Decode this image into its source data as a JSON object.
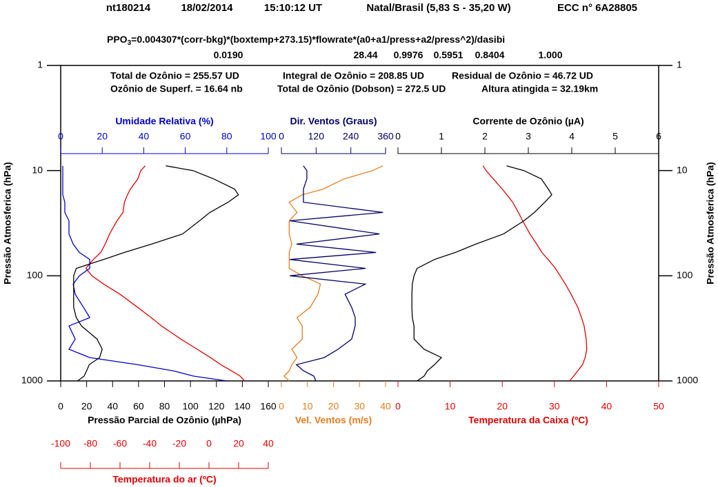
{
  "title_parts": [
    "nt180214",
    "18/02/2014",
    "15:10:12 UT",
    "Natal/Brasil (5,83 S - 35,20 W)",
    "ECC  n° 6A28805"
  ],
  "formula": {
    "lead": "PPO",
    "sub": "3",
    "rest": "=0.004307*(corr-bkg)*(boxtemp+273.15)*flowrate*(a0+a1/press+a2/press^2)/dasibi",
    "coefficients": [
      "0.0190",
      "28.44",
      "0.9976",
      "0.5951",
      "0.8404",
      "1.000"
    ]
  },
  "summary": [
    [
      "Total de Ozônio = 255.57 UD",
      "Integral de Ozônio = 208.85 UD",
      "Residual  de Ozônio = 46.72 UD"
    ],
    [
      "Ozônio de Superf. = 16.64 nb",
      "Total de Ozônio (Dobson) = 272.5 UD",
      "Altura atingida = 32.19km"
    ]
  ],
  "pressure_axis": {
    "label": "Pressão Atmosferica (hPa)",
    "log": true,
    "ylim": [
      1000,
      1
    ],
    "yticks": [
      1,
      10,
      100,
      1000
    ]
  },
  "chart_data": [
    {
      "type": "line",
      "y": [
        1000,
        900,
        800,
        700,
        600,
        500,
        400,
        300,
        250,
        200,
        150,
        120,
        100,
        85,
        70,
        60,
        50,
        40,
        30,
        25,
        20,
        17,
        15,
        12,
        10,
        9
      ],
      "axes": [
        {
          "position": "top",
          "label": "Umidade Relativa (%)",
          "color": "#0000cc",
          "xlim": [
            0,
            100
          ],
          "xticks": [
            0,
            20,
            40,
            60,
            80,
            100
          ]
        },
        {
          "position": "bottom",
          "label": "Pressão Parcial de Ozônio (µhPa)",
          "color": "#000000",
          "xlim": [
            0,
            160
          ],
          "xticks": [
            0,
            20,
            40,
            60,
            80,
            100,
            120,
            140,
            160
          ]
        },
        {
          "position": "bottom2",
          "label": "Temperatura do ar (ºC)",
          "color": "#e00000",
          "xlim": [
            -100,
            40
          ],
          "xticks": [
            -100,
            -80,
            -60,
            -40,
            -20,
            0,
            20,
            40
          ]
        }
      ],
      "series": [
        {
          "axis": 2,
          "color": "#e00000",
          "values": [
            24,
            21,
            15,
            8,
            1,
            -8,
            -19,
            -32,
            -39,
            -48,
            -60,
            -71,
            -79,
            -83,
            -78,
            -73,
            -70,
            -67,
            -62,
            -58,
            -57,
            -55,
            -53,
            -48,
            -46,
            -43
          ]
        },
        {
          "axis": 0,
          "color": "#0000cc",
          "values": [
            80,
            64,
            54,
            37,
            14,
            4,
            7,
            4,
            14,
            11,
            7,
            6,
            9,
            14,
            14,
            9,
            6,
            4,
            4,
            2,
            2,
            1,
            1,
            1,
            1,
            1
          ]
        },
        {
          "axis": 1,
          "color": "#000000",
          "values": [
            13,
            18,
            20,
            22,
            30,
            32,
            28,
            16,
            12,
            10,
            10,
            10,
            10,
            12,
            33,
            49,
            70,
            94,
            107,
            115,
            129,
            137,
            134,
            118,
            102,
            81
          ]
        }
      ]
    },
    {
      "type": "line",
      "y": [
        1000,
        900,
        800,
        700,
        600,
        500,
        400,
        300,
        250,
        200,
        150,
        120,
        100,
        85,
        70,
        60,
        50,
        40,
        30,
        25,
        20,
        17,
        15,
        12,
        10,
        9
      ],
      "axes": [
        {
          "position": "top",
          "label": "Dir. Ventos (Graus)",
          "color": "#000066",
          "xlim": [
            0,
            360
          ],
          "xticks": [
            0,
            120,
            240,
            360
          ]
        },
        {
          "position": "bottom",
          "label": "Vel. Ventos (m/s)",
          "color": "#e87b1e",
          "xlim": [
            0,
            40
          ],
          "xticks": [
            0,
            10,
            20,
            30,
            40
          ]
        }
      ],
      "series": [
        {
          "axis": 1,
          "color": "#e87b1e",
          "values": [
            3,
            1,
            3,
            4,
            6,
            4,
            8,
            8,
            6,
            11,
            14,
            15,
            8,
            3,
            3,
            3,
            4,
            3,
            3,
            6,
            3,
            8,
            16,
            24,
            35,
            39
          ]
        },
        {
          "axis": 0,
          "color": "#000066",
          "values": [
            119,
            112,
            76,
            52,
            148,
            196,
            243,
            255,
            255,
            243,
            220,
            290,
            29,
            291,
            29,
            327,
            52,
            339,
            29,
            351,
            76,
            76,
            76,
            88,
            88,
            76
          ]
        }
      ]
    },
    {
      "type": "line",
      "y": [
        1000,
        900,
        800,
        700,
        600,
        500,
        400,
        300,
        250,
        200,
        150,
        120,
        100,
        85,
        70,
        60,
        50,
        40,
        30,
        25,
        20,
        17,
        15,
        12,
        10,
        9
      ],
      "axes": [
        {
          "position": "top",
          "label": "Corrente de Ozônio (µA)",
          "color": "#000000",
          "xlim": [
            0,
            6
          ],
          "xticks": [
            0,
            1,
            2,
            3,
            4,
            5,
            6
          ]
        },
        {
          "position": "bottom",
          "label": "Temperatura da Caixa (ºC)",
          "color": "#e00000",
          "xlim": [
            0,
            50
          ],
          "xticks": [
            0,
            10,
            20,
            30,
            40,
            50
          ]
        }
      ],
      "series": [
        {
          "axis": 1,
          "color": "#e00000",
          "values": [
            32.9,
            33.7,
            34.5,
            35.4,
            35.9,
            36.2,
            36.1,
            35.7,
            35.2,
            34.5,
            33.2,
            32.1,
            31.1,
            30.2,
            28.8,
            27.6,
            26.6,
            25.3,
            23.9,
            23.1,
            22,
            20.9,
            20,
            18.3,
            16.9,
            16.3
          ]
        },
        {
          "axis": 0,
          "color": "#000000",
          "values": [
            0.44,
            0.6,
            0.68,
            0.84,
            1.0,
            0.6,
            0.37,
            0.37,
            0.33,
            0.32,
            0.32,
            0.33,
            0.37,
            0.44,
            0.84,
            1.32,
            1.79,
            2.43,
            2.9,
            3.14,
            3.38,
            3.54,
            3.46,
            3.3,
            2.9,
            2.5
          ]
        }
      ]
    }
  ]
}
